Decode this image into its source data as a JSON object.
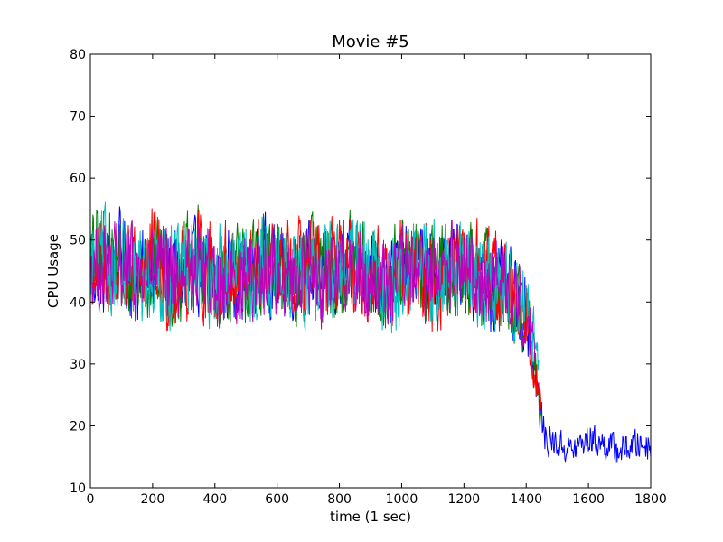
{
  "chart_data": {
    "type": "line",
    "title": "Movie #5",
    "xlabel": "time (1 sec)",
    "ylabel": "CPU Usage",
    "xlim": [
      0,
      1800
    ],
    "ylim": [
      10,
      80
    ],
    "xticks": [
      "0",
      "200",
      "400",
      "600",
      "800",
      "1000",
      "1200",
      "1400",
      "1600",
      "1800"
    ],
    "yticks": [
      "10",
      "20",
      "30",
      "40",
      "50",
      "60",
      "70",
      "80"
    ],
    "grid": false,
    "legend": "none",
    "series": [
      {
        "color": "#0000ff",
        "x": [
          0,
          50,
          100,
          150,
          200,
          250,
          300,
          350,
          400,
          450,
          500,
          550,
          600,
          650,
          700,
          750,
          800,
          850,
          900,
          950,
          1000,
          1050,
          1100,
          1150,
          1200,
          1250,
          1300,
          1350,
          1400,
          1420,
          1440,
          1460,
          1500,
          1550,
          1600,
          1650,
          1700,
          1750,
          1800
        ],
        "values": [
          46,
          44,
          48,
          43,
          47,
          45,
          44,
          46,
          42,
          45,
          43,
          47,
          44,
          45,
          46,
          43,
          44,
          46,
          45,
          43,
          44,
          46,
          44,
          45,
          47,
          43,
          42,
          41,
          38,
          32,
          24,
          18,
          17,
          16,
          18,
          17,
          16,
          17,
          17
        ],
        "spread": [
          9,
          9,
          9,
          9,
          9,
          9,
          9,
          9,
          9,
          9,
          9,
          9,
          9,
          9,
          9,
          9,
          9,
          9,
          9,
          9,
          9,
          9,
          9,
          9,
          9,
          9,
          9,
          9,
          8,
          6,
          4,
          3,
          3,
          3,
          3,
          3,
          3,
          3,
          3
        ]
      },
      {
        "color": "#008000",
        "x": [
          0,
          50,
          100,
          150,
          200,
          250,
          300,
          350,
          400,
          450,
          500,
          550,
          600,
          650,
          700,
          750,
          800,
          850,
          900,
          950,
          1000,
          1050,
          1100,
          1150,
          1200,
          1250,
          1300,
          1350,
          1400,
          1430,
          1450
        ],
        "values": [
          47,
          48,
          45,
          44,
          46,
          44,
          45,
          47,
          43,
          45,
          44,
          46,
          45,
          44,
          46,
          44,
          45,
          47,
          44,
          43,
          45,
          46,
          44,
          46,
          45,
          44,
          43,
          41,
          38,
          28,
          20
        ],
        "spread": [
          10,
          10,
          10,
          10,
          10,
          10,
          10,
          10,
          10,
          10,
          10,
          10,
          10,
          10,
          10,
          10,
          10,
          10,
          10,
          10,
          10,
          10,
          10,
          10,
          10,
          10,
          10,
          9,
          8,
          5,
          3
        ]
      },
      {
        "color": "#ff0000",
        "x": [
          0,
          50,
          100,
          150,
          200,
          250,
          300,
          350,
          400,
          450,
          500,
          550,
          600,
          650,
          700,
          750,
          800,
          850,
          900,
          950,
          1000,
          1050,
          1100,
          1150,
          1200,
          1250,
          1300,
          1350,
          1400,
          1430,
          1450
        ],
        "values": [
          45,
          46,
          44,
          45,
          47,
          43,
          44,
          46,
          44,
          45,
          43,
          46,
          44,
          45,
          45,
          44,
          45,
          46,
          44,
          44,
          45,
          46,
          43,
          45,
          44,
          45,
          43,
          42,
          39,
          29,
          21
        ],
        "spread": [
          10,
          10,
          10,
          10,
          10,
          10,
          10,
          10,
          10,
          10,
          10,
          10,
          10,
          10,
          10,
          10,
          10,
          10,
          10,
          10,
          10,
          10,
          10,
          10,
          10,
          10,
          10,
          9,
          8,
          5,
          3
        ]
      },
      {
        "color": "#00bfbf",
        "x": [
          0,
          50,
          100,
          150,
          200,
          250,
          300,
          350,
          400,
          450,
          500,
          550,
          600,
          650,
          700,
          750,
          800,
          850,
          900,
          950,
          1000,
          1050,
          1100,
          1150,
          1200,
          1250,
          1300,
          1350,
          1400,
          1430,
          1440
        ],
        "values": [
          46,
          47,
          45,
          44,
          45,
          44,
          46,
          45,
          44,
          45,
          44,
          46,
          45,
          43,
          45,
          44,
          46,
          45,
          44,
          43,
          44,
          46,
          45,
          44,
          46,
          44,
          43,
          42,
          40,
          33,
          28
        ],
        "spread": [
          10,
          10,
          10,
          10,
          10,
          10,
          10,
          10,
          10,
          10,
          10,
          10,
          10,
          10,
          10,
          10,
          10,
          10,
          10,
          10,
          10,
          10,
          10,
          10,
          10,
          10,
          10,
          9,
          8,
          6,
          4
        ]
      },
      {
        "color": "#bf00bf",
        "x": [
          0,
          50,
          100,
          150,
          200,
          250,
          300,
          350,
          400,
          450,
          500,
          550,
          600,
          650,
          700,
          750,
          800,
          850,
          900,
          950,
          1000,
          1050,
          1100,
          1150,
          1200,
          1250,
          1300,
          1350,
          1400,
          1430
        ],
        "values": [
          46,
          45,
          46,
          44,
          45,
          44,
          45,
          46,
          43,
          44,
          44,
          45,
          45,
          44,
          45,
          44,
          46,
          45,
          44,
          43,
          44,
          45,
          44,
          45,
          45,
          44,
          43,
          42,
          38,
          30
        ],
        "spread": [
          9,
          9,
          9,
          9,
          9,
          9,
          9,
          9,
          9,
          9,
          9,
          9,
          9,
          9,
          9,
          9,
          9,
          9,
          9,
          9,
          9,
          9,
          9,
          9,
          9,
          9,
          9,
          8,
          7,
          4
        ]
      }
    ]
  }
}
